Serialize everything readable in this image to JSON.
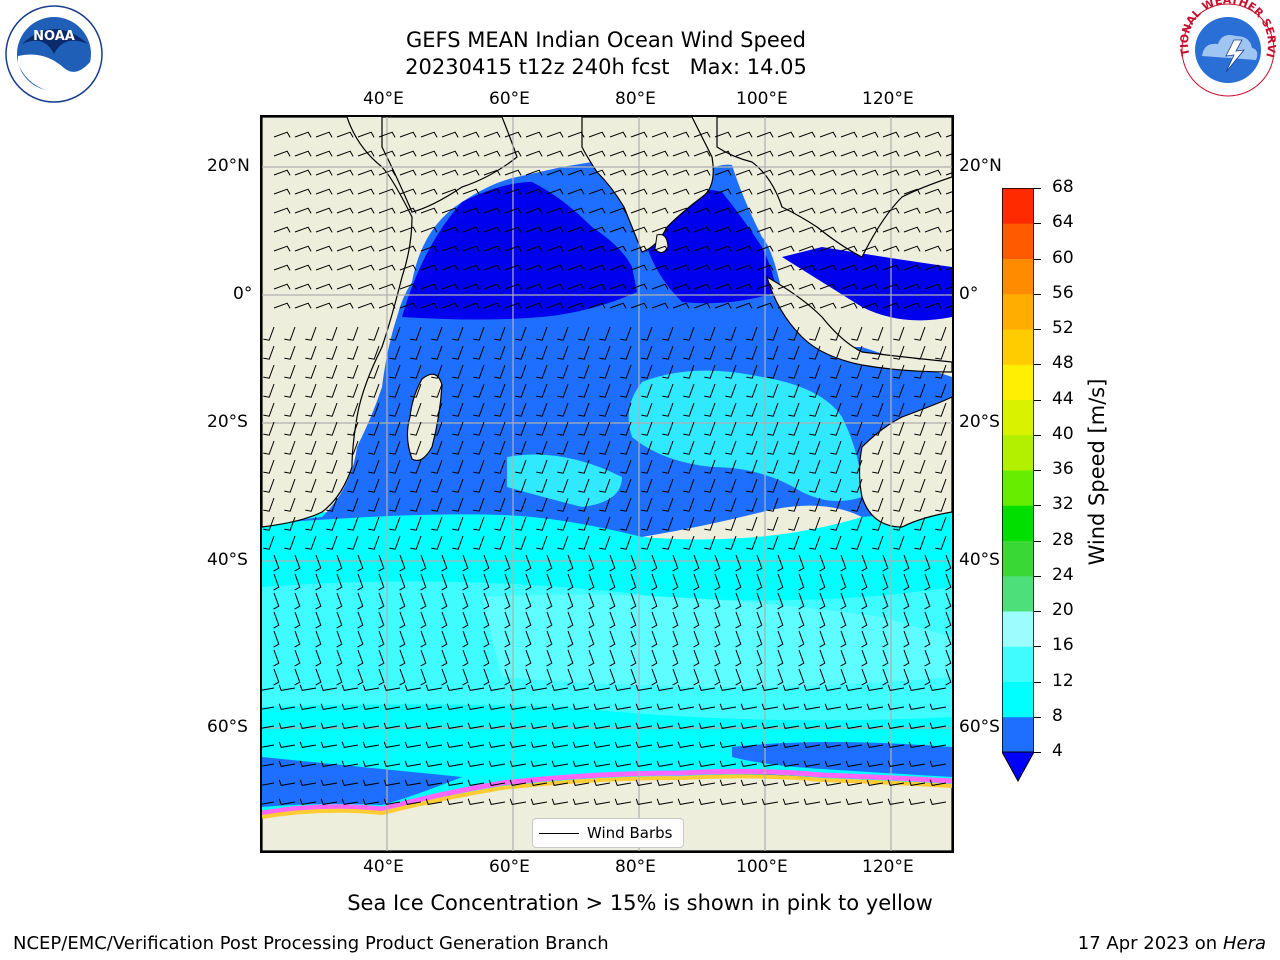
{
  "title": {
    "line1": "GEFS MEAN Indian Ocean Wind Speed",
    "line2": "20230415 t12z 240h fcst   Max: 14.05"
  },
  "logos": {
    "left": {
      "name": "noaa-logo",
      "text": "NOAA",
      "ring_text": "NATIONAL OCEANIC AND ATMOSPHERIC ADMINISTRATION · U.S. DEPARTMENT OF COMMERCE"
    },
    "right": {
      "name": "nws-logo",
      "ring_text": "NATIONAL WEATHER SERVICE"
    }
  },
  "map": {
    "lon_ticks_top": [
      "40°E",
      "60°E",
      "80°E",
      "100°E",
      "120°E"
    ],
    "lon_ticks_bottom": [
      "40°E",
      "60°E",
      "80°E",
      "100°E",
      "120°E"
    ],
    "lat_ticks_left": [
      "20°N",
      "0°",
      "20°S",
      "40°S",
      "60°S"
    ],
    "lat_ticks_right": [
      "20°N",
      "0°",
      "20°S",
      "40°S",
      "60°S"
    ],
    "grid_lons": [
      40,
      60,
      80,
      100,
      120
    ],
    "grid_lats": [
      20,
      0,
      -20,
      -40,
      -60
    ],
    "extent": {
      "lon_min": 20.5,
      "lon_max": 130,
      "lat_min": -74,
      "lat_max": 26
    },
    "legend_label": "Wind Barbs",
    "colors": {
      "land": "#eeeedc",
      "ocean_low": "#1f7bff",
      "ocean_mid": "#00ffff",
      "ocean_high": "#4dffff",
      "calm": "#0000ff",
      "ice": "#ffb0ff",
      "ice_yellow": "#ffd24d"
    }
  },
  "colorbar": {
    "title": "Wind Speed [m/s]",
    "levels": [
      "4",
      "8",
      "12",
      "16",
      "20",
      "24",
      "28",
      "32",
      "36",
      "40",
      "44",
      "48",
      "52",
      "56",
      "60",
      "64",
      "68"
    ],
    "colors": [
      "#1e6fff",
      "#00ffff",
      "#3ffcff",
      "#9bfdfd",
      "#4de07a",
      "#3ad834",
      "#00e000",
      "#66ee00",
      "#b3f000",
      "#d9f200",
      "#ffef00",
      "#ffcc00",
      "#ffad00",
      "#ff8c00",
      "#ff5a00",
      "#ff2a00"
    ],
    "under_color": "#0000ff"
  },
  "note": "Sea Ice Concentration > 15% is shown in pink to yellow",
  "footer": {
    "left": "NCEP/EMC/Verification Post Processing Product Generation Branch",
    "date": "17 Apr 2023 on ",
    "host": "Hera"
  }
}
